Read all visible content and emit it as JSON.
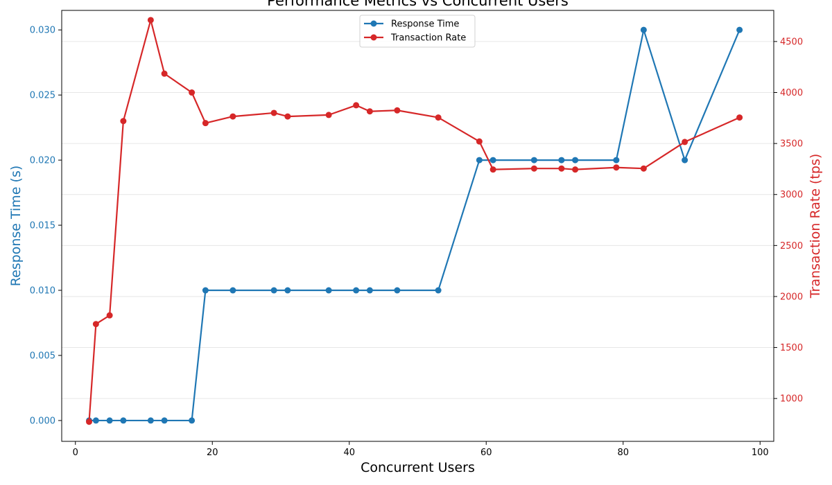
{
  "chart_data": {
    "type": "line",
    "title": "Performance Metrics vs Concurrent Users",
    "xlabel": "Concurrent Users",
    "ylabel_left": "Response Time (s)",
    "ylabel_right": "Transaction Rate (tps)",
    "xlim": [
      -2,
      102
    ],
    "ylim_left": [
      -0.0016,
      0.0315
    ],
    "ylim_right": [
      580,
      4805
    ],
    "x_ticks": [
      0,
      20,
      40,
      60,
      80,
      100
    ],
    "y_left_ticks": [
      0.0,
      0.005,
      0.01,
      0.015,
      0.02,
      0.025,
      0.03
    ],
    "y_right_ticks": [
      1000,
      1500,
      2000,
      2500,
      3000,
      3500,
      4000,
      4500
    ],
    "grid": true,
    "legend_position": "top-center",
    "colors": {
      "response_time": "#1f77b4",
      "transaction_rate": "#d62728"
    },
    "series": [
      {
        "name": "Response Time",
        "axis": "left",
        "color": "#1f77b4",
        "x": [
          2,
          3,
          5,
          7,
          11,
          13,
          17,
          19,
          23,
          29,
          31,
          37,
          41,
          43,
          47,
          53,
          59,
          61,
          67,
          71,
          73,
          79,
          83,
          89,
          97
        ],
        "y": [
          0.0,
          0.0,
          0.0,
          0.0,
          0.0,
          0.0,
          0.0,
          0.01,
          0.01,
          0.01,
          0.01,
          0.01,
          0.01,
          0.01,
          0.01,
          0.01,
          0.02,
          0.02,
          0.02,
          0.02,
          0.02,
          0.02,
          0.03,
          0.02,
          0.03
        ]
      },
      {
        "name": "Transaction Rate",
        "axis": "right",
        "color": "#d62728",
        "x": [
          2,
          3,
          5,
          7,
          11,
          13,
          17,
          19,
          23,
          29,
          31,
          37,
          41,
          43,
          47,
          53,
          59,
          61,
          67,
          71,
          73,
          79,
          83,
          89,
          97
        ],
        "y": [
          772,
          1730,
          1815,
          3720,
          4710,
          4185,
          4000,
          3700,
          3765,
          3800,
          3765,
          3780,
          3875,
          3815,
          3825,
          3755,
          3520,
          3245,
          3255,
          3255,
          3245,
          3265,
          3255,
          3515,
          3755
        ]
      }
    ]
  }
}
